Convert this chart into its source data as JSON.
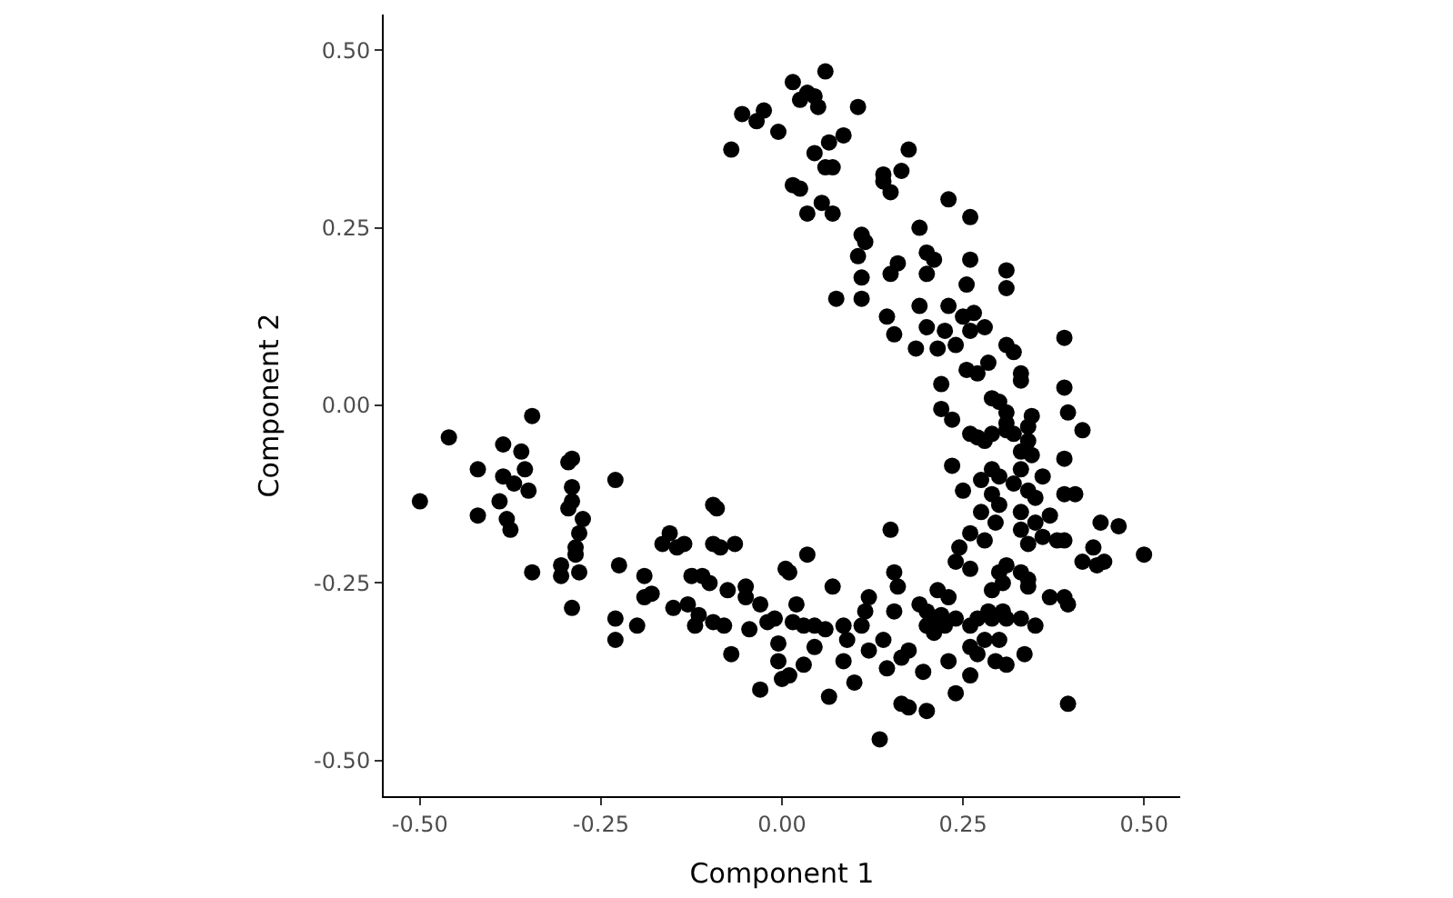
{
  "chart_data": {
    "type": "scatter",
    "xlabel": "Component 1",
    "ylabel": "Component 2",
    "xlim": [
      -0.55,
      0.55
    ],
    "ylim": [
      -0.55,
      0.55
    ],
    "xticks": [
      {
        "value": -0.5,
        "label": "-0.50"
      },
      {
        "value": -0.25,
        "label": "-0.25"
      },
      {
        "value": 0,
        "label": "0.00"
      },
      {
        "value": 0.25,
        "label": "0.25"
      },
      {
        "value": 0.5,
        "label": "0.50"
      }
    ],
    "yticks": [
      {
        "value": -0.5,
        "label": "-0.50"
      },
      {
        "value": -0.25,
        "label": "-0.25"
      },
      {
        "value": 0,
        "label": "0.00"
      },
      {
        "value": 0.25,
        "label": "0.25"
      },
      {
        "value": 0.5,
        "label": "0.50"
      }
    ],
    "grid": false,
    "marker": "circle",
    "series": [
      {
        "color": "#000000",
        "x": [
          0.06,
          0.015,
          0.035,
          0.025,
          0.045,
          0.105,
          -0.055,
          -0.035,
          -0.025,
          0.05,
          -0.005,
          0.085,
          0.065,
          0.045,
          -0.07,
          0.06,
          0.07,
          0.175,
          0.14,
          0.165,
          0.015,
          0.025,
          0.14,
          0.15,
          0.055,
          0.035,
          0.07,
          0.23,
          0.26,
          0.11,
          0.115,
          0.19,
          0.2,
          0.21,
          0.26,
          0.105,
          0.16,
          0.15,
          0.11,
          0.31,
          0.2,
          0.31,
          0.255,
          0.075,
          0.11,
          0.19,
          0.23,
          0.25,
          0.265,
          0.28,
          0.145,
          0.2,
          0.225,
          0.26,
          0.155,
          0.39,
          0.185,
          0.215,
          0.24,
          0.31,
          0.32,
          0.285,
          0.255,
          0.27,
          0.33,
          0.33,
          0.22,
          0.39,
          0.29,
          0.3,
          0.22,
          0.31,
          0.345,
          0.395,
          0.235,
          0.31,
          0.34,
          0.415,
          0.26,
          0.27,
          0.29,
          0.31,
          0.32,
          0.34,
          0.28,
          0.33,
          0.345,
          0.235,
          0.39,
          0.29,
          0.33,
          0.36,
          0.3,
          0.275,
          0.32,
          0.25,
          0.29,
          0.34,
          0.35,
          0.39,
          0.405,
          0.3,
          0.275,
          0.33,
          0.37,
          0.35,
          0.44,
          0.465,
          0.295,
          0.26,
          0.33,
          0.36,
          0.38,
          0.34,
          0.39,
          0.43,
          0.28,
          0.245,
          0.5,
          0.24,
          0.31,
          0.415,
          0.435,
          0.445,
          0.33,
          0.3,
          0.26,
          0.34,
          0.305,
          0.29,
          0.34,
          0.37,
          0.39,
          0.395,
          0.15,
          0.155,
          0.16,
          0.215,
          0.23,
          0.19,
          0.2,
          0.21,
          0.22,
          0.24,
          0.27,
          0.285,
          0.29,
          0.305,
          0.31,
          0.33,
          0.35,
          0.2,
          0.21,
          0.225,
          0.26,
          0.28,
          0.3,
          0.26,
          0.27,
          0.295,
          0.31,
          0.335,
          0.23,
          0.26,
          0.24,
          0.195,
          0.2,
          0.175,
          0.165,
          0.145,
          0.165,
          0.14,
          0.12,
          0.175,
          0.115,
          0.12,
          0.155,
          0.11,
          0.085,
          0.09,
          0.085,
          0.1,
          0.135,
          0.395,
          0.07,
          0.06,
          0.045,
          0.03,
          0.015,
          0.02,
          0.03,
          0.065,
          0.045,
          0.035,
          0.005,
          0.01,
          -0.01,
          -0.02,
          -0.005,
          -0.005,
          0.0,
          0.01,
          -0.03,
          -0.05,
          -0.05,
          -0.045,
          -0.5,
          -0.46,
          -0.42,
          -0.42,
          -0.385,
          -0.385,
          -0.39,
          -0.38,
          -0.375,
          -0.37,
          -0.36,
          -0.355,
          -0.35,
          -0.345,
          -0.345,
          -0.305,
          -0.305,
          -0.295,
          -0.29,
          -0.29,
          -0.29,
          -0.295,
          -0.285,
          -0.285,
          -0.28,
          -0.28,
          -0.275,
          -0.29,
          -0.23,
          -0.23,
          -0.23,
          -0.225,
          -0.2,
          -0.19,
          -0.19,
          -0.18,
          -0.165,
          -0.155,
          -0.145,
          -0.15,
          -0.135,
          -0.13,
          -0.125,
          -0.12,
          -0.115,
          -0.11,
          -0.1,
          -0.095,
          -0.09,
          -0.095,
          -0.085,
          -0.095,
          -0.08,
          -0.075,
          -0.07,
          -0.065,
          -0.03
        ],
        "values": [
          0.47,
          0.455,
          0.44,
          0.43,
          0.435,
          0.42,
          0.41,
          0.4,
          0.415,
          0.42,
          0.385,
          0.38,
          0.37,
          0.355,
          0.36,
          0.335,
          0.335,
          0.36,
          0.325,
          0.33,
          0.31,
          0.305,
          0.315,
          0.3,
          0.285,
          0.27,
          0.27,
          0.29,
          0.265,
          0.24,
          0.23,
          0.25,
          0.215,
          0.205,
          0.205,
          0.21,
          0.2,
          0.185,
          0.18,
          0.19,
          0.185,
          0.165,
          0.17,
          0.15,
          0.15,
          0.14,
          0.14,
          0.125,
          0.13,
          0.11,
          0.125,
          0.11,
          0.105,
          0.105,
          0.1,
          0.095,
          0.08,
          0.08,
          0.085,
          0.085,
          0.075,
          0.06,
          0.05,
          0.045,
          0.045,
          0.035,
          0.03,
          0.025,
          0.01,
          0.005,
          -0.005,
          -0.01,
          -0.015,
          -0.01,
          -0.02,
          -0.025,
          -0.03,
          -0.035,
          -0.04,
          -0.045,
          -0.04,
          -0.035,
          -0.04,
          -0.05,
          -0.05,
          -0.065,
          -0.07,
          -0.085,
          -0.075,
          -0.09,
          -0.09,
          -0.1,
          -0.1,
          -0.105,
          -0.11,
          -0.12,
          -0.125,
          -0.12,
          -0.13,
          -0.125,
          -0.125,
          -0.14,
          -0.15,
          -0.15,
          -0.155,
          -0.165,
          -0.165,
          -0.17,
          -0.165,
          -0.18,
          -0.175,
          -0.185,
          -0.19,
          -0.195,
          -0.19,
          -0.2,
          -0.19,
          -0.2,
          -0.21,
          -0.22,
          -0.225,
          -0.22,
          -0.225,
          -0.22,
          -0.235,
          -0.235,
          -0.23,
          -0.245,
          -0.25,
          -0.26,
          -0.255,
          -0.27,
          -0.27,
          -0.28,
          -0.175,
          -0.235,
          -0.255,
          -0.26,
          -0.27,
          -0.28,
          -0.29,
          -0.3,
          -0.295,
          -0.3,
          -0.3,
          -0.29,
          -0.3,
          -0.29,
          -0.3,
          -0.3,
          -0.31,
          -0.31,
          -0.32,
          -0.31,
          -0.31,
          -0.33,
          -0.33,
          -0.34,
          -0.35,
          -0.36,
          -0.365,
          -0.35,
          -0.36,
          -0.38,
          -0.405,
          -0.375,
          -0.43,
          -0.425,
          -0.42,
          -0.37,
          -0.355,
          -0.33,
          -0.345,
          -0.345,
          -0.29,
          -0.27,
          -0.29,
          -0.31,
          -0.31,
          -0.33,
          -0.36,
          -0.39,
          -0.47,
          -0.42,
          -0.255,
          -0.315,
          -0.31,
          -0.31,
          -0.305,
          -0.28,
          -0.365,
          -0.41,
          -0.34,
          -0.21,
          -0.23,
          -0.235,
          -0.3,
          -0.305,
          -0.335,
          -0.36,
          -0.385,
          -0.38,
          -0.4,
          -0.255,
          -0.27,
          -0.315,
          -0.135,
          -0.045,
          -0.09,
          -0.155,
          -0.055,
          -0.1,
          -0.135,
          -0.16,
          -0.175,
          -0.11,
          -0.065,
          -0.09,
          -0.12,
          -0.015,
          -0.235,
          -0.225,
          -0.24,
          -0.08,
          -0.075,
          -0.115,
          -0.135,
          -0.145,
          -0.2,
          -0.21,
          -0.18,
          -0.235,
          -0.16,
          -0.285,
          -0.105,
          -0.3,
          -0.33,
          -0.225,
          -0.31,
          -0.24,
          -0.27,
          -0.265,
          -0.195,
          -0.18,
          -0.2,
          -0.285,
          -0.195,
          -0.28,
          -0.24,
          -0.31,
          -0.295,
          -0.24,
          -0.25,
          -0.14,
          -0.145,
          -0.195,
          -0.2,
          -0.305,
          -0.31,
          -0.26,
          -0.35,
          -0.195,
          -0.28
        ]
      }
    ]
  }
}
